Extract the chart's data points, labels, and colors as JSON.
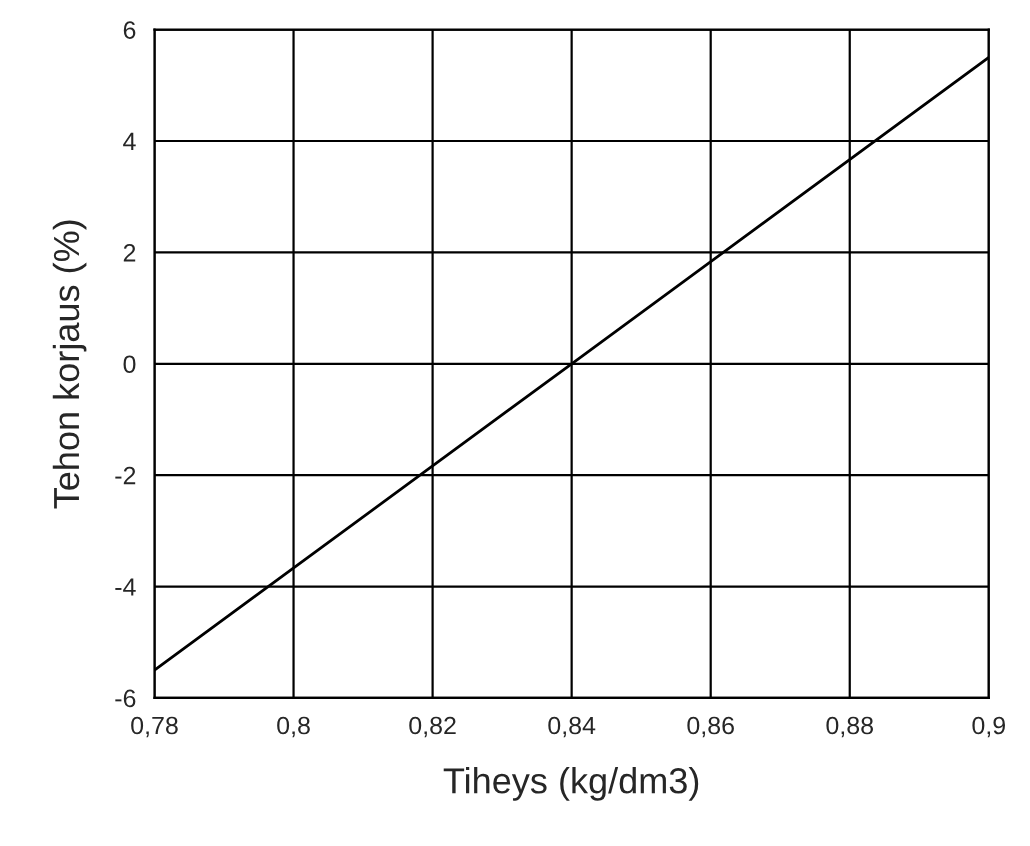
{
  "chart_data": {
    "type": "line",
    "xlabel": "Tiheys (kg/dm3)",
    "ylabel": "Tehon korjaus (%)",
    "x": [
      0.78,
      0.84,
      0.9
    ],
    "series": [
      {
        "color": "#000000",
        "values": [
          -5.5,
          0,
          5.5
        ]
      }
    ],
    "xlim": [
      0.78,
      0.9
    ],
    "xticks": [
      {
        "value": 0.78,
        "label": "0,78"
      },
      {
        "value": 0.8,
        "label": "0,8"
      },
      {
        "value": 0.82,
        "label": "0,82"
      },
      {
        "value": 0.84,
        "label": "0,84"
      },
      {
        "value": 0.86,
        "label": "0,86"
      },
      {
        "value": 0.88,
        "label": "0,88"
      },
      {
        "value": 0.9,
        "label": "0,9"
      }
    ],
    "ylim": [
      -6,
      6
    ],
    "yticks": [
      -6,
      -4,
      -2,
      0,
      2,
      4,
      6
    ],
    "grid": true,
    "marker": "none",
    "line_style": "solid"
  }
}
